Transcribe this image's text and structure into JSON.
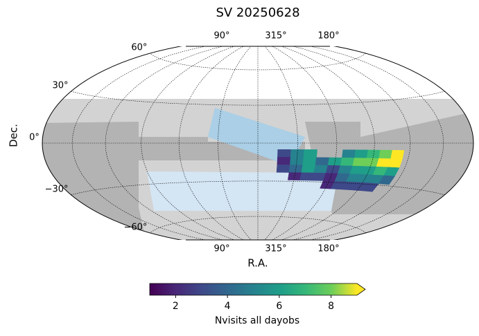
{
  "chart_data": {
    "type": "skymap",
    "title": "SV 20250628",
    "xlabel": "R.A.",
    "ylabel": "Dec.",
    "ra_labels": [
      "90°",
      "315°",
      "180°"
    ],
    "decticks": [
      {
        "value": 60,
        "label": "60°"
      },
      {
        "value": 30,
        "label": "30°"
      },
      {
        "value": 0,
        "label": "0°"
      },
      {
        "value": -30,
        "label": "−30°"
      },
      {
        "value": -60,
        "label": "−60°"
      }
    ],
    "heatmap": {
      "ra": [
        295,
        285,
        275,
        265,
        255,
        245,
        235,
        225,
        215,
        205
      ],
      "dec": [
        -8,
        -14,
        -20,
        -26,
        -32
      ],
      "values": [
        [
          3,
          5,
          6,
          null,
          null,
          5,
          6,
          7,
          8,
          9
        ],
        [
          2,
          5,
          6,
          4,
          6,
          7,
          8,
          8,
          9,
          9
        ],
        [
          3,
          4,
          6,
          5,
          3,
          5,
          6,
          6,
          7,
          6
        ],
        [
          null,
          2,
          3,
          3,
          2,
          4,
          5,
          5,
          5,
          4
        ],
        [
          null,
          null,
          null,
          null,
          2,
          3,
          3,
          3,
          3,
          null
        ]
      ]
    },
    "colorbar": {
      "label": "Nvisits all dayobs",
      "clim": [
        1,
        9
      ],
      "ticks": [
        2,
        4,
        6,
        8
      ],
      "colormap": "viridis"
    }
  }
}
